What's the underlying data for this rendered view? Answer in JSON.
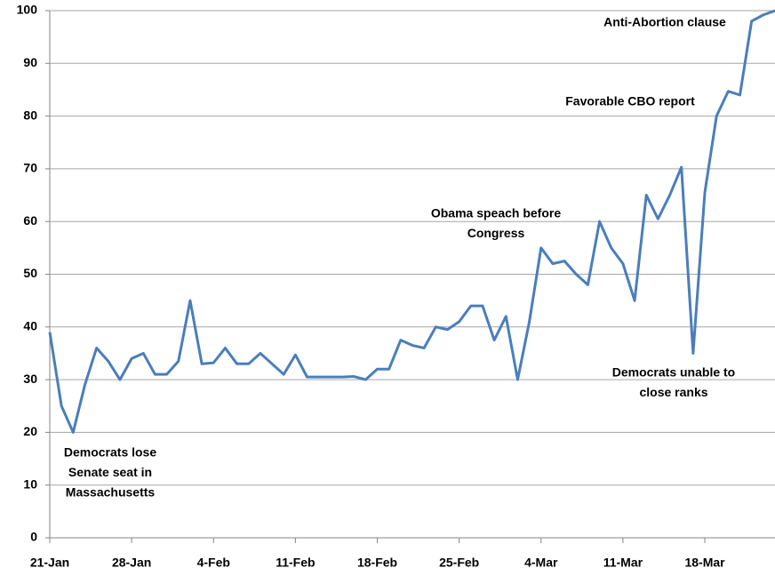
{
  "chart_data": {
    "type": "line",
    "categories": [
      "21-Jan",
      null,
      null,
      null,
      null,
      null,
      null,
      "28-Jan",
      null,
      null,
      null,
      null,
      null,
      null,
      "4-Feb",
      null,
      null,
      null,
      null,
      null,
      null,
      "11-Feb",
      null,
      null,
      null,
      null,
      null,
      null,
      "18-Feb",
      null,
      null,
      null,
      null,
      null,
      null,
      "25-Feb",
      null,
      null,
      null,
      null,
      null,
      null,
      "4-Mar",
      null,
      null,
      null,
      null,
      null,
      null,
      "11-Mar",
      null,
      null,
      null,
      null,
      null,
      null,
      "18-Mar",
      null,
      null,
      null,
      null,
      null,
      null
    ],
    "series": [
      {
        "color": "#4a7ebb",
        "values": [
          39,
          25,
          20,
          29,
          36,
          33.5,
          30,
          34,
          35,
          31,
          31,
          33.5,
          45,
          33,
          33.2,
          36,
          33,
          33,
          35,
          33,
          31,
          34.7,
          30.5,
          30.5,
          30.5,
          30.5,
          30.6,
          30,
          32,
          32,
          37.5,
          36.5,
          36,
          40,
          39.5,
          41,
          44,
          44,
          37.5,
          42,
          30,
          41,
          55,
          52,
          52.5,
          50,
          48,
          60,
          55,
          52,
          45,
          65,
          60.5,
          65,
          70.3,
          35,
          65.5,
          80,
          84.7,
          84,
          98,
          99.2,
          100
        ]
      }
    ],
    "ylim": [
      0,
      100
    ],
    "yticks": [
      0,
      10,
      20,
      30,
      40,
      50,
      60,
      70,
      80,
      90,
      100
    ],
    "grid": true,
    "annotations": [
      [
        "Democrats lose",
        "Senate seat in",
        "Massachusetts"
      ],
      [
        "Obama speach before",
        "Congress"
      ],
      [
        "Favorable CBO report"
      ],
      [
        "Anti-Abortion clause"
      ],
      [
        "Democrats unable to",
        "close ranks"
      ]
    ]
  }
}
